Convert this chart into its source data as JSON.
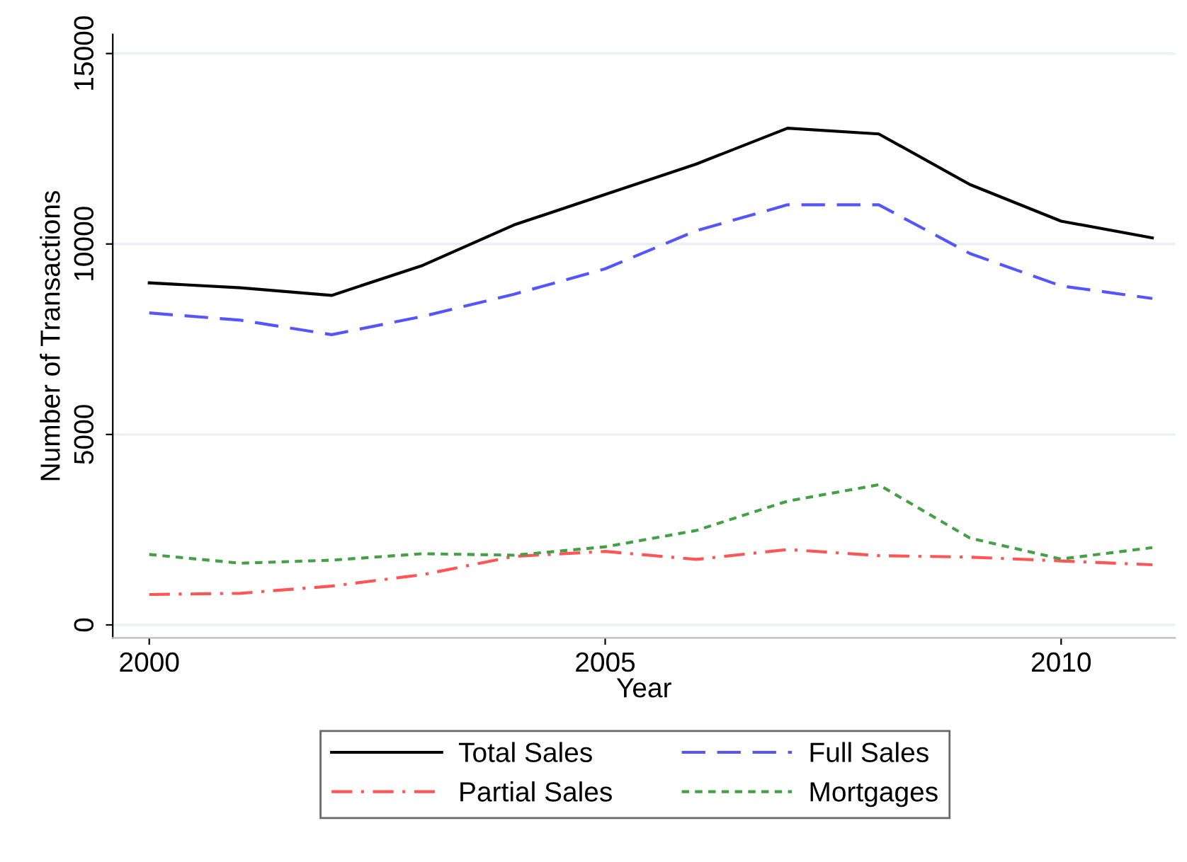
{
  "chart_data": {
    "type": "line",
    "xlabel": "Year",
    "ylabel": "Number of Transactions",
    "x": [
      2000,
      2001,
      2002,
      2003,
      2004,
      2005,
      2006,
      2007,
      2008,
      2009,
      2010,
      2011
    ],
    "series": [
      {
        "name": "Total Sales",
        "color": "#000000",
        "line_style": "solid",
        "values": [
          8980,
          8850,
          8650,
          9440,
          10500,
          11300,
          12100,
          13040,
          12890,
          11560,
          10600,
          10160
        ]
      },
      {
        "name": "Full Sales",
        "color": "#5555ff",
        "line_style": "dashed",
        "values": [
          8190,
          8000,
          7620,
          8100,
          8680,
          9350,
          10350,
          11030,
          11030,
          9750,
          8900,
          8570
        ]
      },
      {
        "name": "Partial Sales",
        "color": "#ff5555",
        "line_style": "dashdot",
        "values": [
          800,
          830,
          1020,
          1320,
          1800,
          1930,
          1720,
          1980,
          1820,
          1780,
          1680,
          1580
        ]
      },
      {
        "name": "Mortgages",
        "color": "#44a044",
        "line_style": "dotted",
        "values": [
          1850,
          1620,
          1700,
          1870,
          1830,
          2050,
          2480,
          3250,
          3680,
          2280,
          1730,
          2030
        ]
      }
    ],
    "xlim": [
      1999.6,
      2011.25
    ],
    "ylim": [
      -340,
      15500
    ],
    "xticks": [
      2000,
      2005,
      2010
    ],
    "yticks": [
      0,
      5000,
      10000,
      15000
    ],
    "grid": "y",
    "legend": "bottom"
  }
}
